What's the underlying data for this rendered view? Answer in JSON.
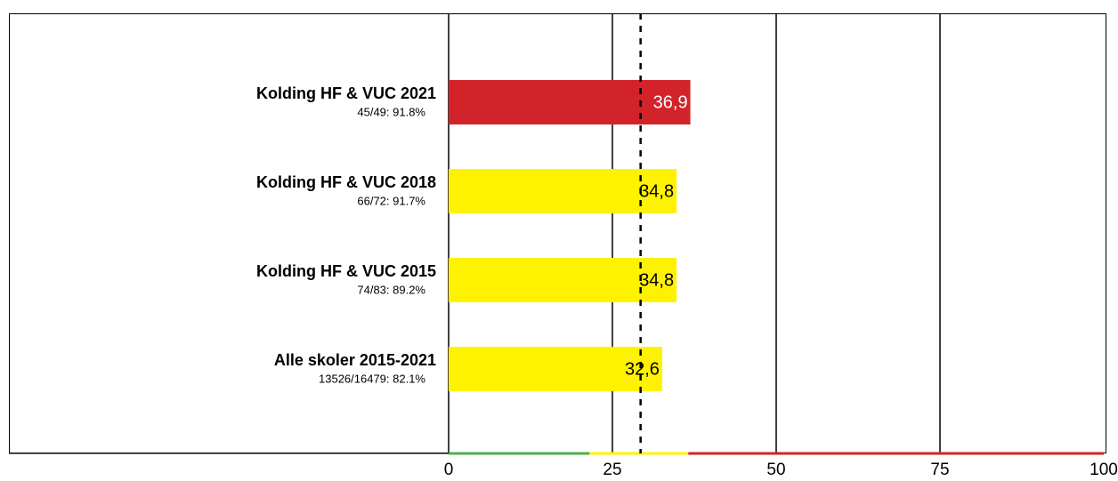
{
  "chart_data": {
    "type": "barh",
    "categories": [
      "Kolding HF & VUC 2021",
      "Kolding HF & VUC 2018",
      "Kolding HF & VUC 2015",
      "Alle skoler 2015-2021"
    ],
    "sublabels": [
      "45/49: 91.8%",
      "66/72: 91.7%",
      "74/83: 89.2%",
      "13526/16479: 82.1%"
    ],
    "values": [
      36.9,
      34.8,
      34.8,
      32.6
    ],
    "value_labels": [
      "36,9",
      "34,8",
      "34,8",
      "32,6"
    ],
    "colors": [
      "#d2232a",
      "#fff200",
      "#fff200",
      "#fff200"
    ],
    "label_colors": [
      "#ffffff",
      "#000000",
      "#000000",
      "#000000"
    ],
    "xlim": [
      0,
      100
    ],
    "xticks": [
      0,
      25,
      50,
      75,
      100
    ],
    "grid": true,
    "reference_line": 29.3,
    "bands": [
      {
        "from": 0,
        "to": 21.5,
        "color": "#4caf50"
      },
      {
        "from": 21.5,
        "to": 36.6,
        "color": "#fff200"
      },
      {
        "from": 36.6,
        "to": 100,
        "color": "#d2232a"
      }
    ]
  }
}
